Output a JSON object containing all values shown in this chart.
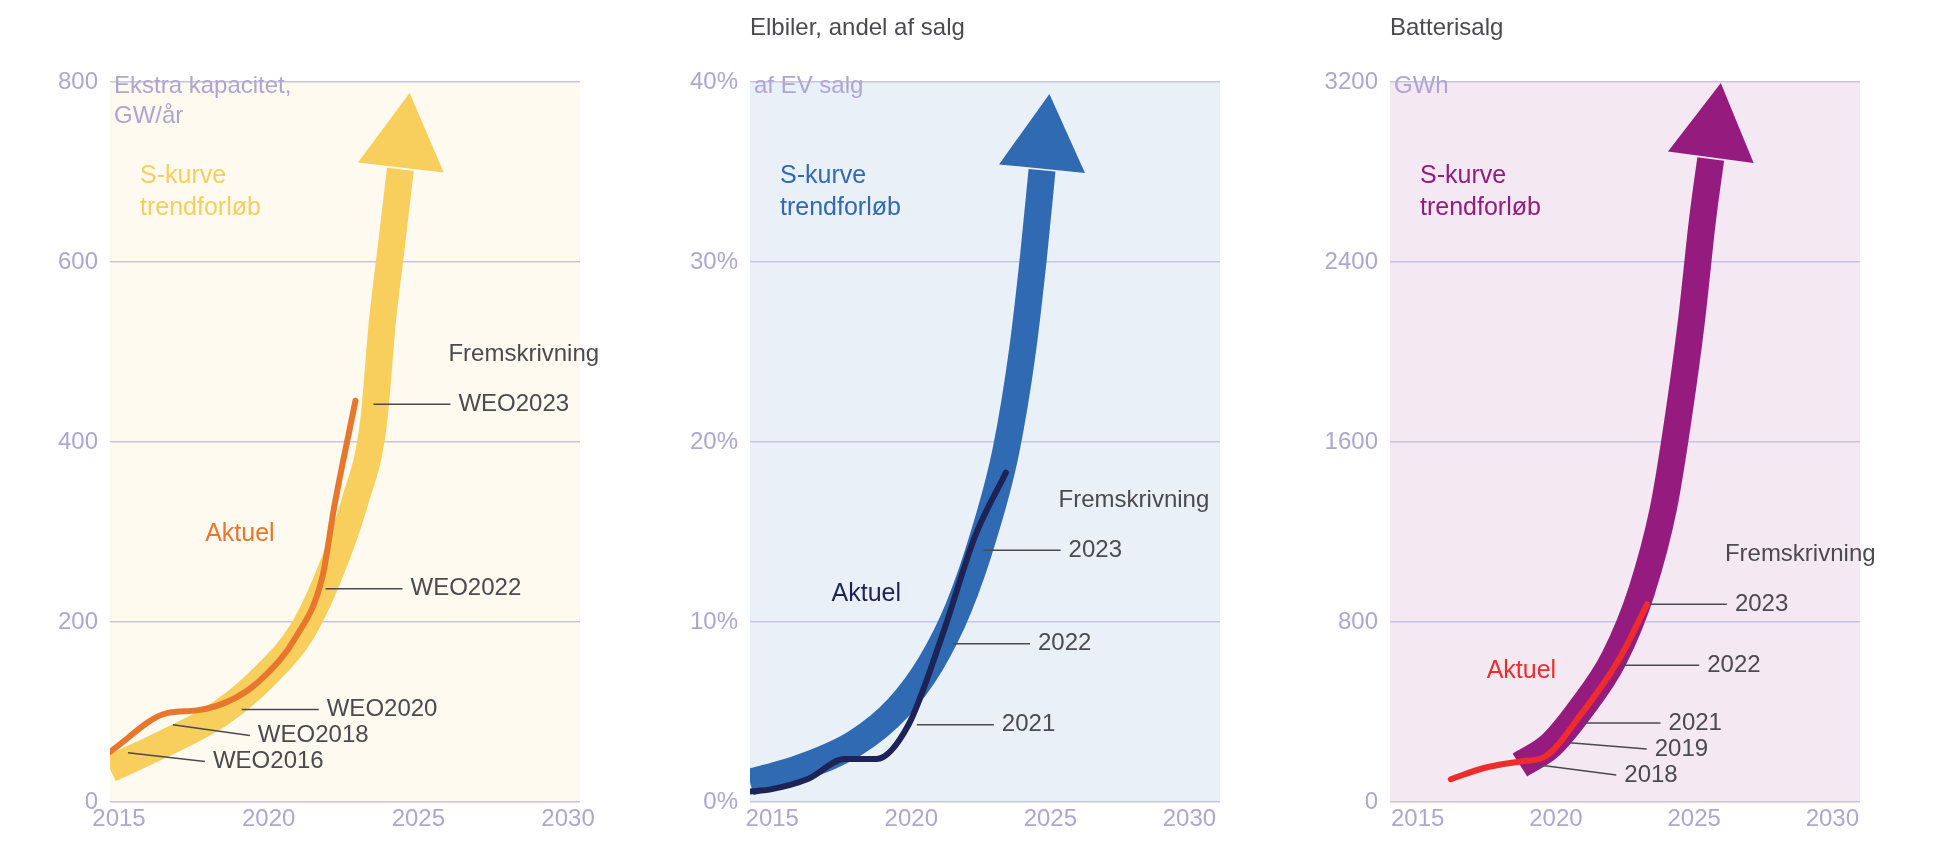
{
  "chart_data": [
    {
      "type": "line",
      "ylabel": "Ekstra kapacitet, GW/år",
      "xlim": [
        2014.7,
        2030.4
      ],
      "xticks": [
        2015,
        2020,
        2025,
        2030
      ],
      "ylim": [
        0,
        800
      ],
      "yticks": [
        0,
        200,
        400,
        600,
        800
      ],
      "grid": "y",
      "legend": false,
      "series": [
        {
          "name": "S-kurve trendforløb",
          "color": "#f8cf5c",
          "x": [
            2014.7,
            2016.5,
            2018.4,
            2019.8,
            2021.1,
            2022.0,
            2022.9,
            2023.5,
            2023.8,
            2024.1,
            2024.4
          ],
          "values": [
            37,
            65,
            99,
            138,
            189,
            251,
            336,
            421,
            534,
            618,
            703
          ]
        },
        {
          "name": "Aktuel",
          "color": "#e8772e",
          "x": [
            2014.7,
            2016.6,
            2017.6,
            2018.9,
            2019.8,
            2020.9,
            2021.8,
            2022.2,
            2022.9
          ],
          "values": [
            56,
            99,
            102,
            116,
            138,
            183,
            251,
            330,
            446
          ]
        }
      ],
      "annotations": [
        "Fremskrivning",
        {
          "text": "WEO2023",
          "x": 2023.5,
          "y": 442
        },
        {
          "text": "WEO2022",
          "x": 2021.9,
          "y": 237
        },
        {
          "text": "WEO2020",
          "x": 2019.1,
          "y": 103
        },
        {
          "text": "WEO2018",
          "x": 2016.8,
          "y": 86
        },
        {
          "text": "WEO2016",
          "x": 2015.3,
          "y": 55
        }
      ]
    },
    {
      "type": "line",
      "title": "Elbiler, andel af salg",
      "ylabel": "af EV salg",
      "xlim": [
        2014.2,
        2031.1
      ],
      "xticks": [
        2015,
        2020,
        2025,
        2030
      ],
      "ylim": [
        0,
        40
      ],
      "yticks": [
        {
          "value": 0,
          "label": "0%"
        },
        {
          "value": 10,
          "label": "10%"
        },
        {
          "value": 20,
          "label": "20%"
        },
        {
          "value": 30,
          "label": "30%"
        },
        {
          "value": 40,
          "label": "40%"
        }
      ],
      "grid": "y",
      "legend": false,
      "series": [
        {
          "name": "S-kurve trendforløb",
          "color": "#2f6ab3",
          "x": [
            2014.2,
            2016.0,
            2018.0,
            2019.5,
            2020.7,
            2021.7,
            2022.6,
            2023.4,
            2024.0,
            2024.4,
            2024.7
          ],
          "values": [
            1.1,
            1.9,
            3.3,
            5.2,
            7.7,
            10.8,
            14.8,
            19.5,
            25.1,
            30.4,
            35.1
          ]
        },
        {
          "name": "Aktuel",
          "color": "#1e2356",
          "x": [
            2014.2,
            2014.9,
            2016.3,
            2017.6,
            2018.75,
            2019.9,
            2021.1,
            2022.3,
            2023.4
          ],
          "values": [
            0.6,
            0.7,
            1.3,
            2.4,
            2.4,
            4.3,
            9.2,
            14.8,
            18.3
          ]
        }
      ],
      "annotations": [
        "Fremskrivning",
        {
          "text": "2023",
          "x": 2022.6,
          "y": 14.0
        },
        {
          "text": "2022",
          "x": 2021.5,
          "y": 8.8
        },
        {
          "text": "2021",
          "x": 2020.2,
          "y": 4.3
        }
      ]
    },
    {
      "type": "line",
      "title": "Batterisalg",
      "ylabel": "GWh",
      "xlim": [
        2014.0,
        2031.0
      ],
      "xticks": [
        2015,
        2020,
        2025,
        2030
      ],
      "ylim": [
        0,
        3200
      ],
      "yticks": [
        0,
        800,
        1600,
        2400,
        3200
      ],
      "grid": "y",
      "legend": false,
      "series": [
        {
          "name": "S-kurve trendforløb",
          "color": "#951b7f",
          "x": [
            2018.7,
            2019.8,
            2020.9,
            2022.1,
            2023.1,
            2023.9,
            2024.4,
            2024.9,
            2025.3,
            2025.6
          ],
          "values": [
            165,
            252,
            414,
            638,
            938,
            1312,
            1686,
            2135,
            2584,
            2858
          ]
        },
        {
          "name": "Aktuel",
          "color": "#ee2c2c",
          "x": [
            2016.2,
            2017.4,
            2018.8,
            2019.6,
            2020.9,
            2022.3,
            2023.3
          ],
          "values": [
            102,
            152,
            182,
            202,
            389,
            638,
            880
          ]
        }
      ],
      "annotations": [
        "Fremskrivning",
        {
          "text": "2023",
          "x": 2023.4,
          "y": 880
        },
        {
          "text": "2022",
          "x": 2022.4,
          "y": 609
        },
        {
          "text": "2021",
          "x": 2021.0,
          "y": 352
        },
        {
          "text": "2019",
          "x": 2020.5,
          "y": 264
        },
        {
          "text": "2018",
          "x": 2019.4,
          "y": 165
        }
      ]
    }
  ]
}
